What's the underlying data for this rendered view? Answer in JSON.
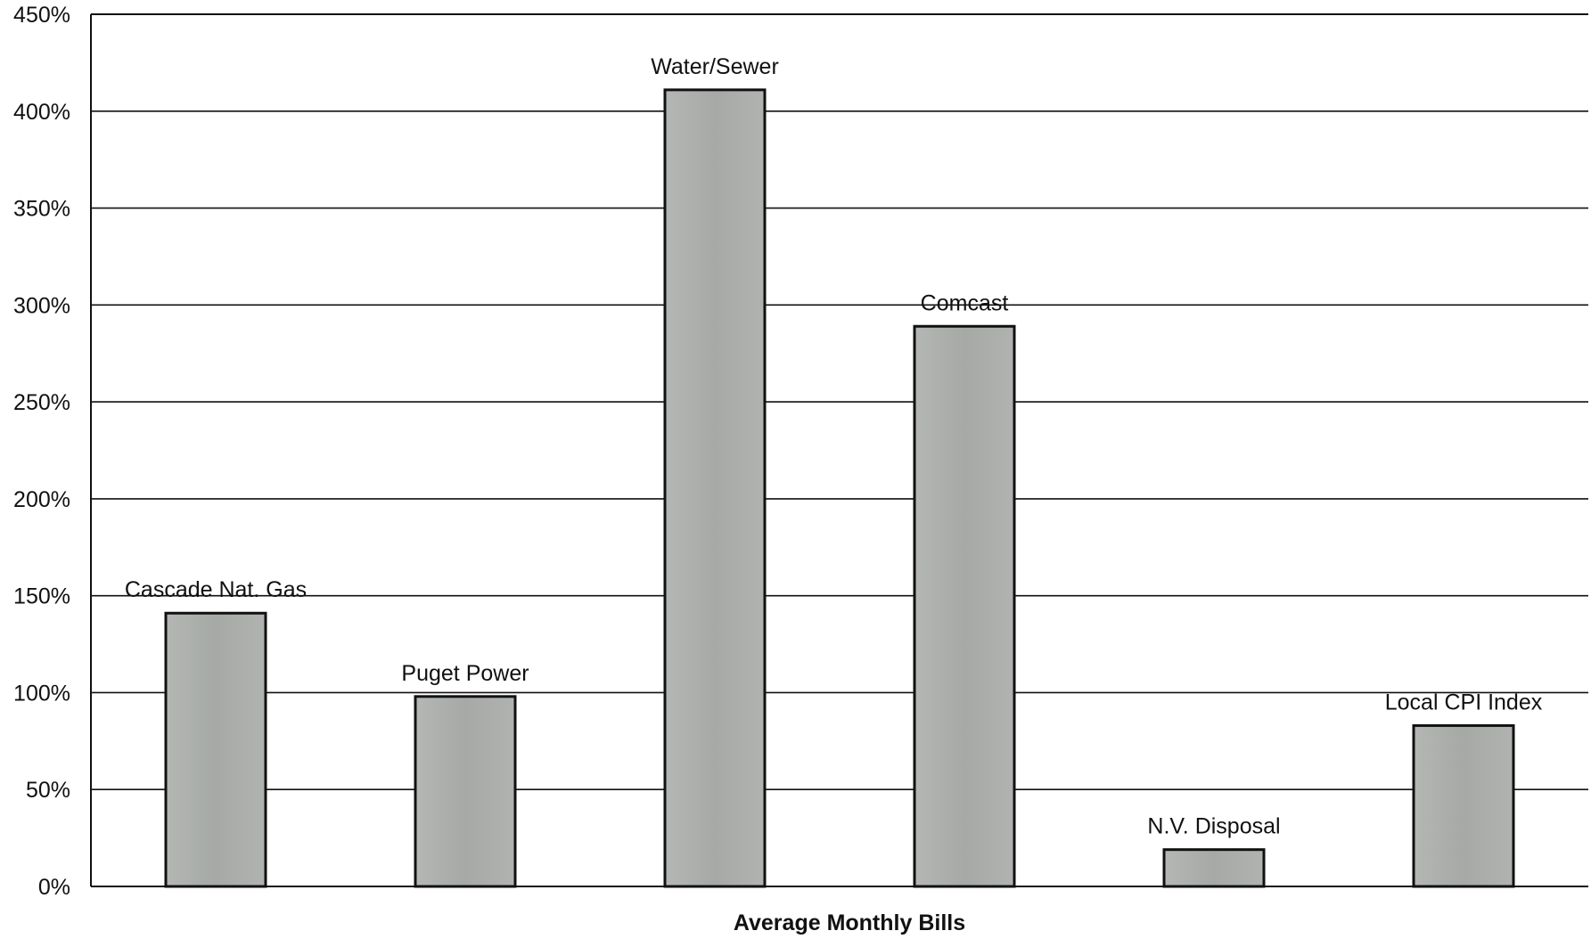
{
  "chart_data": {
    "type": "bar",
    "title": "",
    "xlabel": "Average Monthly Bills",
    "ylabel": "",
    "ylim": [
      0,
      450
    ],
    "yticks": [
      0,
      50,
      100,
      150,
      200,
      250,
      300,
      350,
      400,
      450
    ],
    "ytick_labels": [
      "0%",
      "50%",
      "100%",
      "150%",
      "200%",
      "250%",
      "300%",
      "350%",
      "400%",
      "450%"
    ],
    "grid": true,
    "legend": "none",
    "categories": [
      "Cascade Nat. Gas",
      "Puget Power",
      "Water/Sewer",
      "Comcast",
      "N.V. Disposal",
      "Local CPI Index"
    ],
    "values": [
      141,
      98,
      411,
      289,
      19,
      83
    ],
    "bar_color": "#a9aca9"
  }
}
